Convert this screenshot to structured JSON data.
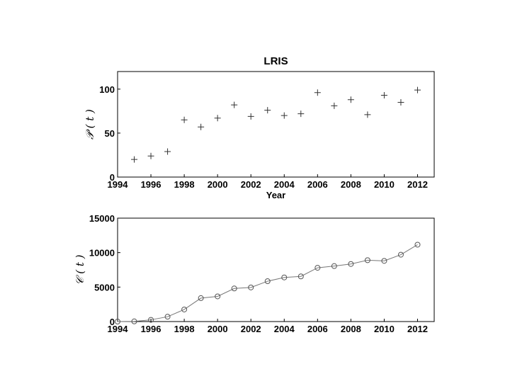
{
  "chart_data": [
    {
      "type": "scatter",
      "title": "LRIS",
      "xlabel": "Year",
      "ylabel": "𝒫 ( t )",
      "xlim": [
        1994,
        2013
      ],
      "ylim": [
        0,
        120
      ],
      "xticks": [
        1994,
        1996,
        1998,
        2000,
        2002,
        2004,
        2006,
        2008,
        2010,
        2012
      ],
      "yticks": [
        0,
        50,
        100
      ],
      "marker": "plus",
      "x": [
        1995,
        1996,
        1997,
        1998,
        1999,
        2000,
        2001,
        2002,
        2003,
        2004,
        2005,
        2006,
        2007,
        2008,
        2009,
        2010,
        2011,
        2012
      ],
      "y": [
        20,
        24,
        29,
        65,
        57,
        67,
        82,
        69,
        76,
        70,
        72,
        96,
        81,
        88,
        71,
        93,
        85,
        99
      ]
    },
    {
      "type": "line",
      "title": "",
      "xlabel": "",
      "ylabel": "𝒞 ( t )",
      "xlim": [
        1994,
        2013
      ],
      "ylim": [
        0,
        15000
      ],
      "xticks": [
        1994,
        1996,
        1998,
        2000,
        2002,
        2004,
        2006,
        2008,
        2010,
        2012
      ],
      "yticks": [
        0,
        5000,
        10000,
        15000
      ],
      "marker": "circle",
      "x": [
        1994,
        1995,
        1996,
        1997,
        1998,
        1999,
        2000,
        2001,
        2002,
        2003,
        2004,
        2005,
        2006,
        2007,
        2008,
        2009,
        2010,
        2011,
        2012
      ],
      "y": [
        0,
        20,
        250,
        700,
        1750,
        3400,
        3650,
        4800,
        4950,
        5850,
        6400,
        6550,
        7800,
        8050,
        8350,
        8900,
        8800,
        9700,
        11150
      ]
    }
  ]
}
